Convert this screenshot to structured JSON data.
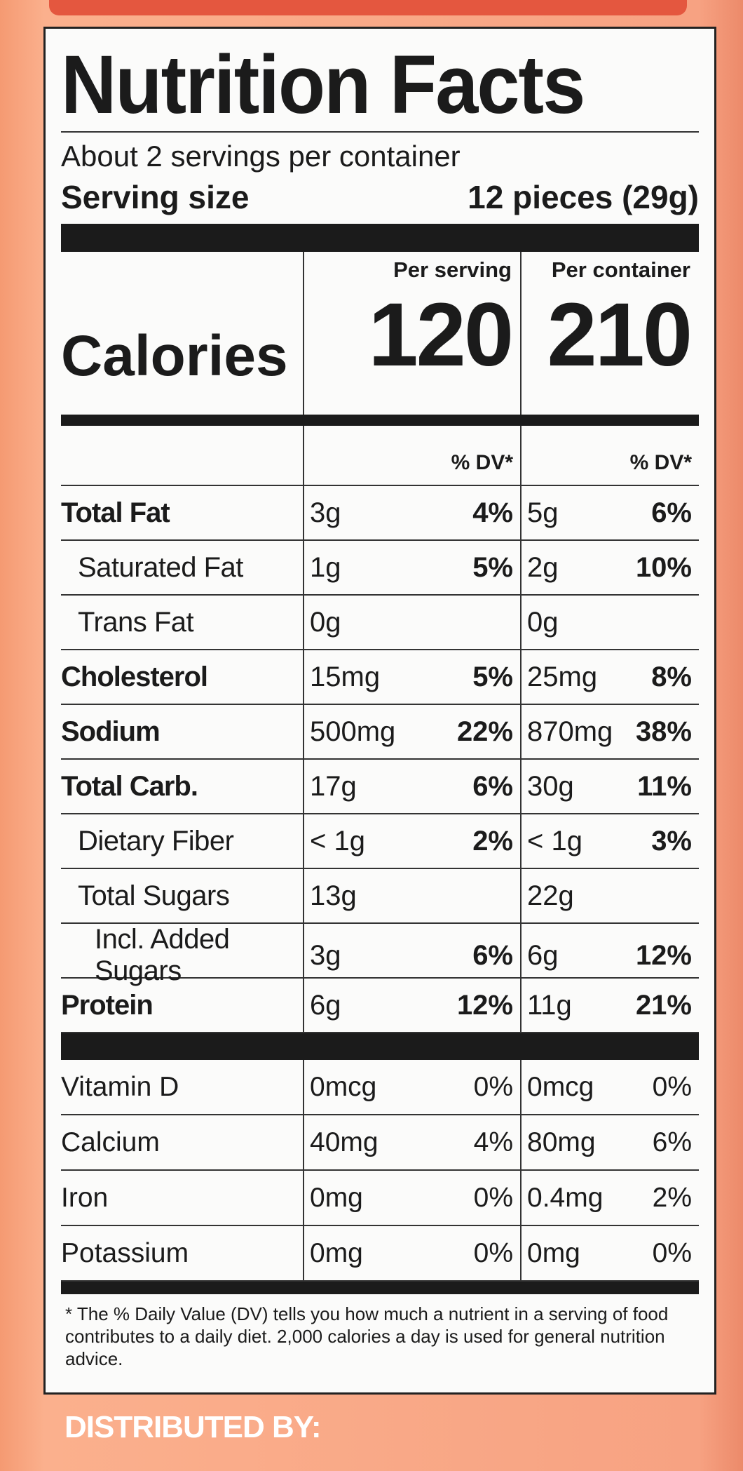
{
  "header": {
    "title": "Nutrition Facts",
    "servings_per_container": "About 2 servings per container",
    "serving_size_label": "Serving size",
    "serving_size": "12 pieces (29g)"
  },
  "calories": {
    "label": "Calories",
    "per_serving_label": "Per serving",
    "per_serving": "120",
    "per_container_label": "Per container",
    "per_container": "210"
  },
  "dv_headers": [
    "% DV*",
    "% DV*"
  ],
  "nutrients": [
    {
      "name": "Total Fat",
      "bold": true,
      "indent": 0,
      "serving": {
        "amount": "3g",
        "dv": "4%"
      },
      "container": {
        "amount": "5g",
        "dv": "6%"
      }
    },
    {
      "name": "Saturated Fat",
      "bold": false,
      "indent": 1,
      "serving": {
        "amount": "1g",
        "dv": "5%"
      },
      "container": {
        "amount": "2g",
        "dv": "10%"
      }
    },
    {
      "name": "Trans Fat",
      "bold": false,
      "indent": 1,
      "serving": {
        "amount": "0g"
      },
      "container": {
        "amount": "0g"
      }
    },
    {
      "name": "Cholesterol",
      "bold": true,
      "indent": 0,
      "serving": {
        "amount": "15mg",
        "dv": "5%"
      },
      "container": {
        "amount": "25mg",
        "dv": "8%"
      }
    },
    {
      "name": "Sodium",
      "bold": true,
      "indent": 0,
      "serving": {
        "amount": "500mg",
        "dv": "22%"
      },
      "container": {
        "amount": "870mg",
        "dv": "38%"
      }
    },
    {
      "name": "Total Carb.",
      "bold": true,
      "indent": 0,
      "serving": {
        "amount": "17g",
        "dv": "6%"
      },
      "container": {
        "amount": "30g",
        "dv": "11%"
      }
    },
    {
      "name": "Dietary Fiber",
      "bold": false,
      "indent": 1,
      "serving": {
        "amount": "< 1g",
        "dv": "2%"
      },
      "container": {
        "amount": "< 1g",
        "dv": "3%"
      }
    },
    {
      "name": "Total Sugars",
      "bold": false,
      "indent": 1,
      "serving": {
        "amount": "13g"
      },
      "container": {
        "amount": "22g"
      }
    },
    {
      "name": "Incl. Added Sugars",
      "bold": false,
      "indent": 2,
      "serving": {
        "amount": "3g",
        "dv": "6%"
      },
      "container": {
        "amount": "6g",
        "dv": "12%"
      }
    },
    {
      "name": "Protein",
      "bold": true,
      "indent": 0,
      "serving": {
        "amount": "6g",
        "dv": "12%"
      },
      "container": {
        "amount": "11g",
        "dv": "21%"
      }
    }
  ],
  "vitamins": [
    {
      "name": "Vitamin D",
      "serving": {
        "amount": "0mcg",
        "dv": "0%"
      },
      "container": {
        "amount": "0mcg",
        "dv": "0%"
      }
    },
    {
      "name": "Calcium",
      "serving": {
        "amount": "40mg",
        "dv": "4%"
      },
      "container": {
        "amount": "80mg",
        "dv": "6%"
      }
    },
    {
      "name": "Iron",
      "serving": {
        "amount": "0mg",
        "dv": "0%"
      },
      "container": {
        "amount": "0.4mg",
        "dv": "2%"
      }
    },
    {
      "name": "Potassium",
      "serving": {
        "amount": "0mg",
        "dv": "0%"
      },
      "container": {
        "amount": "0mg",
        "dv": "0%"
      }
    }
  ],
  "footnote": "* The % Daily Value (DV) tells you how much a nutrient in a serving of food contributes to a daily diet. 2,000 calories a day is used for general nutrition advice.",
  "distributor": "DISTRIBUTED BY:"
}
